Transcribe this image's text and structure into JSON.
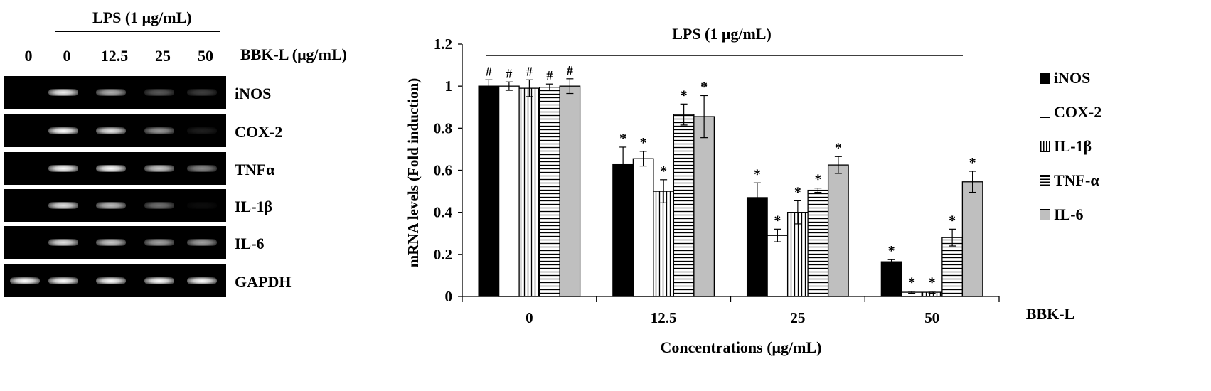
{
  "gel": {
    "lps_header": "LPS (1 μg/mL)",
    "bbk_header": "BBK-L (μg/mL)",
    "lanes": [
      "0",
      "0",
      "12.5",
      "25",
      "50"
    ],
    "rows": [
      {
        "gene": "iNOS",
        "intensity": [
          0.0,
          0.95,
          0.7,
          0.35,
          0.25
        ]
      },
      {
        "gene": "COX-2",
        "intensity": [
          0.0,
          1.0,
          0.9,
          0.6,
          0.12
        ]
      },
      {
        "gene": "TNFα",
        "intensity": [
          0.0,
          1.0,
          1.0,
          0.8,
          0.55
        ]
      },
      {
        "gene": "IL-1β",
        "intensity": [
          0.0,
          0.9,
          0.75,
          0.45,
          0.05
        ]
      },
      {
        "gene": "IL-6",
        "intensity": [
          0.0,
          0.9,
          0.8,
          0.65,
          0.65
        ]
      },
      {
        "gene": "GAPDH",
        "intensity": [
          1.0,
          1.0,
          1.0,
          1.0,
          1.0
        ]
      }
    ]
  },
  "chart_data": {
    "type": "bar",
    "title": "LPS (1 μg/mL)",
    "xlabel": "Concentrations  (μg/mL)",
    "ylabel": "mRNA levels (Fold induction)",
    "x_side_label": "BBK-L",
    "ylim": [
      0,
      1.2
    ],
    "yticks": [
      "0",
      "0.2",
      "0.4",
      "0.6",
      "0.8",
      "1",
      "1.2"
    ],
    "categories": [
      "0",
      "12.5",
      "25",
      "50"
    ],
    "series": [
      {
        "name": "iNOS",
        "fill": "solid-black",
        "values": [
          1.0,
          0.63,
          0.47,
          0.165
        ],
        "errors": [
          0.03,
          0.08,
          0.07,
          0.01
        ],
        "marks": [
          "#",
          "*",
          "*",
          "*"
        ]
      },
      {
        "name": "COX-2",
        "fill": "white",
        "values": [
          1.0,
          0.655,
          0.29,
          0.02
        ],
        "errors": [
          0.02,
          0.035,
          0.03,
          0.005
        ],
        "marks": [
          "#",
          "*",
          "*",
          "*"
        ]
      },
      {
        "name": "IL-1β",
        "fill": "vertical-lines",
        "values": [
          0.99,
          0.5,
          0.4,
          0.02
        ],
        "errors": [
          0.04,
          0.055,
          0.055,
          0.005
        ],
        "marks": [
          "#",
          "*",
          "*",
          "*"
        ]
      },
      {
        "name": "TNF-α",
        "fill": "horizontal-lines",
        "values": [
          0.995,
          0.865,
          0.505,
          0.28
        ],
        "errors": [
          0.015,
          0.05,
          0.01,
          0.04
        ],
        "marks": [
          "#",
          "*",
          "*",
          "*"
        ]
      },
      {
        "name": "IL-6",
        "fill": "gray",
        "values": [
          1.0,
          0.855,
          0.625,
          0.545
        ],
        "errors": [
          0.035,
          0.1,
          0.04,
          0.05
        ],
        "marks": [
          "#",
          "*",
          "*",
          "*"
        ]
      }
    ],
    "colors": {
      "black": "#000000",
      "white": "#ffffff",
      "gray": "#bfbfbf"
    }
  }
}
